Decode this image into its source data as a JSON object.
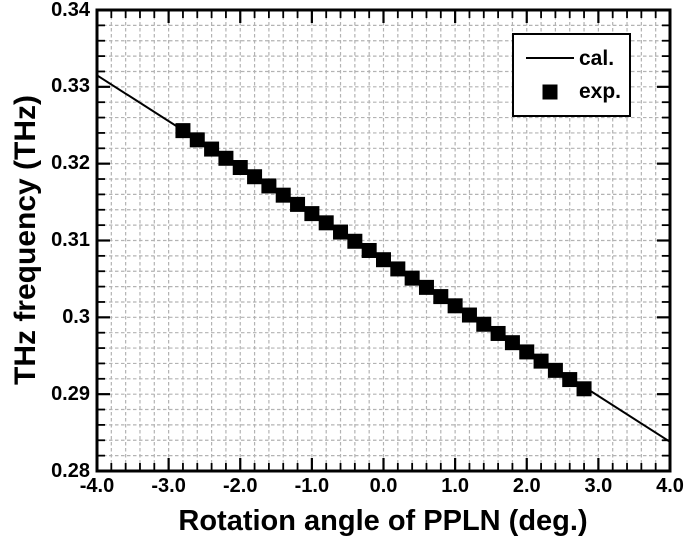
{
  "colors": {
    "background": "#ffffff",
    "foreground": "#000000",
    "grid": "#b3b3b3"
  },
  "chart_data": {
    "type": "line",
    "title": "",
    "xlabel": "Rotation angle of PPLN (deg.)",
    "ylabel": "THz frequency (THz)",
    "xlim": [
      -4.0,
      4.0
    ],
    "ylim": [
      0.28,
      0.34
    ],
    "x_major_step": 1.0,
    "x_minor_step": 0.2,
    "y_major_step": 0.01,
    "y_minor_step": 0.002,
    "x_ticks": {
      "values": [
        -4.0,
        -3.0,
        -2.0,
        -1.0,
        0.0,
        1.0,
        2.0,
        3.0,
        4.0
      ],
      "labels": [
        "-4.0",
        "-3.0",
        "-2.0",
        "-1.0",
        "0.0",
        "1.0",
        "2.0",
        "3.0",
        "4.0"
      ]
    },
    "y_ticks": {
      "values": [
        0.34,
        0.33,
        0.32,
        0.31,
        0.3,
        0.29,
        0.28
      ],
      "labels": [
        "0.34",
        "0.33",
        "0.32",
        "0.31",
        "0.3",
        "0.29",
        "0.28"
      ]
    },
    "grid": {
      "on": true,
      "at": "minor",
      "color": "#b3b3b3",
      "dash": "3.5 2.5"
    },
    "legend": {
      "position": "top-right",
      "border_color": "#000000",
      "background": "#ffffff",
      "items": [
        "cal.",
        "exp."
      ]
    },
    "series": [
      {
        "name": "cal.",
        "kind": "line",
        "color": "#000000",
        "width": 2,
        "x": [
          -4.0,
          4.0
        ],
        "y": [
          0.3315,
          0.2838
        ]
      },
      {
        "name": "exp.",
        "kind": "scatter",
        "marker": "filled-square",
        "color": "#000000",
        "size": 15,
        "x": [
          -2.8,
          -2.6,
          -2.4,
          -2.2,
          -2.0,
          -1.8,
          -1.6,
          -1.4,
          -1.2,
          -1.0,
          -0.8,
          -0.6,
          -0.4,
          -0.2,
          0.0,
          0.2,
          0.4,
          0.6,
          0.8,
          1.0,
          1.2,
          1.4,
          1.6,
          1.8,
          2.0,
          2.2,
          2.4,
          2.6,
          2.8
        ],
        "y": [
          0.3243,
          0.3231,
          0.3219,
          0.3207,
          0.3195,
          0.3183,
          0.3171,
          0.3159,
          0.3147,
          0.3135,
          0.3123,
          0.3111,
          0.3099,
          0.3087,
          0.3075,
          0.3063,
          0.3051,
          0.3039,
          0.3027,
          0.3015,
          0.3003,
          0.2991,
          0.2979,
          0.2967,
          0.2955,
          0.2943,
          0.2931,
          0.2919,
          0.2907
        ]
      }
    ]
  }
}
